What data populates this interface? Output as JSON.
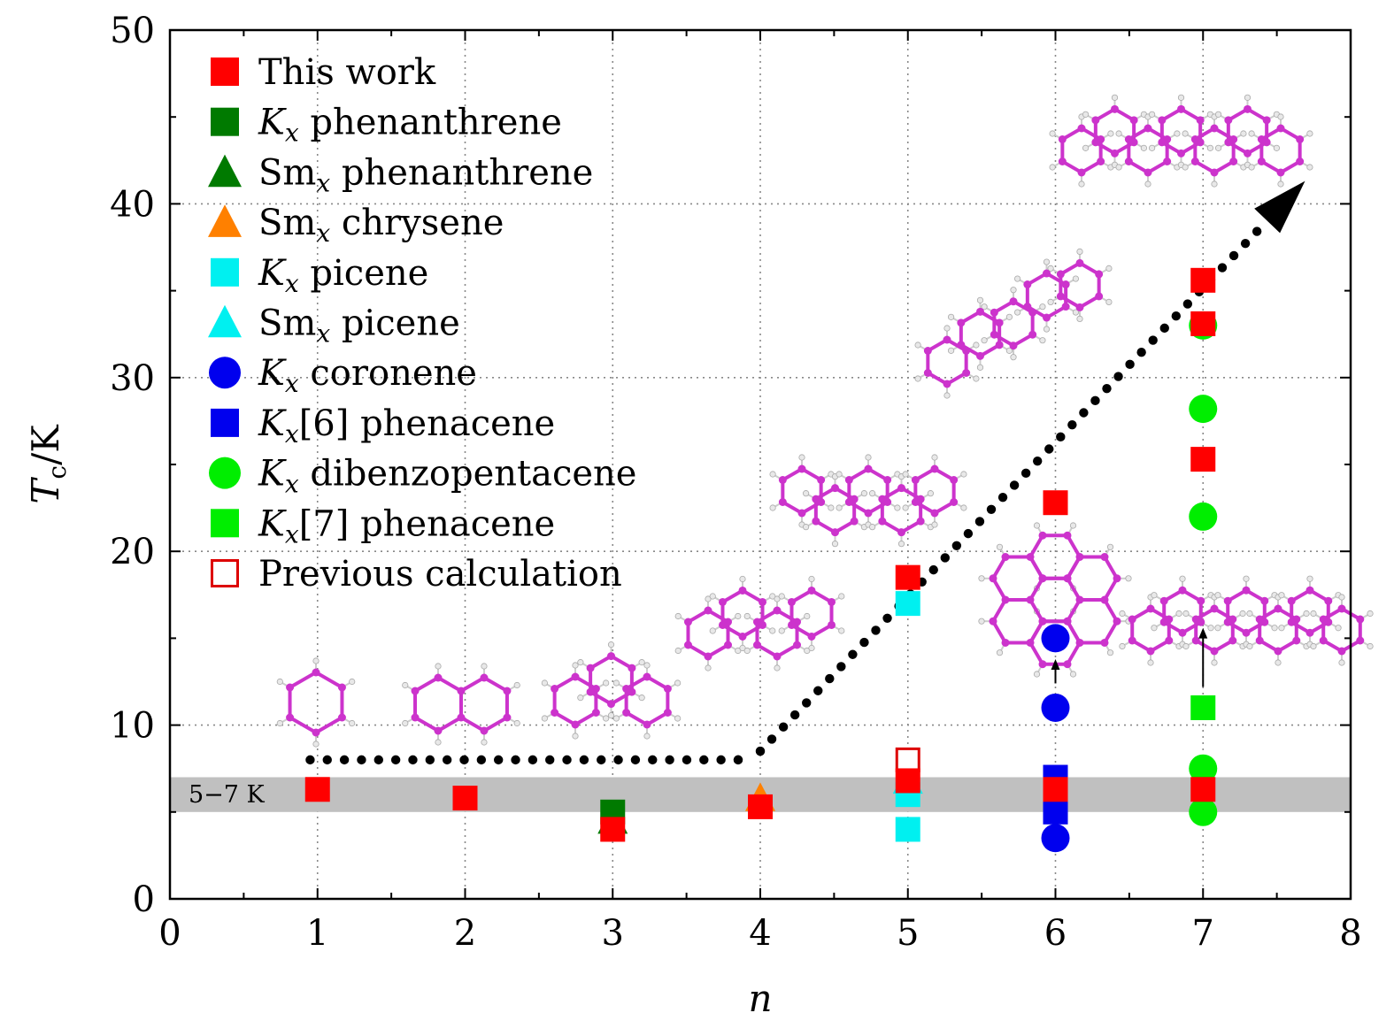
{
  "chart_data": {
    "type": "scatter",
    "xlabel": "n",
    "ylabel": "Tc/K",
    "ylabel_parts": {
      "main": "T",
      "sub": "c",
      "rest": "/K"
    },
    "xlim": [
      0,
      8
    ],
    "ylim": [
      0,
      50
    ],
    "x_ticks": [
      "0",
      "1",
      "2",
      "3",
      "4",
      "5",
      "6",
      "7",
      "8"
    ],
    "y_ticks": [
      "0",
      "10",
      "20",
      "30",
      "40",
      "50"
    ],
    "grid": true,
    "legend_placement": "top-left",
    "band": {
      "from": 5,
      "to": 7,
      "label": "5−7 K",
      "color": "#c0c0c0"
    },
    "series": [
      {
        "name": "This work",
        "name_parts": [
          "This work"
        ],
        "marker": "square",
        "color": "#ff0000",
        "points": [
          [
            1,
            6.3
          ],
          [
            2,
            5.8
          ],
          [
            3,
            4
          ],
          [
            4,
            5.3
          ],
          [
            5,
            18.5
          ],
          [
            5,
            6.8
          ],
          [
            6,
            22.8
          ],
          [
            6,
            6.3
          ],
          [
            7,
            35.6
          ],
          [
            7,
            33.1
          ],
          [
            7,
            25.3
          ],
          [
            7,
            6.3
          ]
        ]
      },
      {
        "name": "Kx phenanthrene",
        "name_parts": [
          "K",
          "x",
          " phenanthrene"
        ],
        "marker": "square",
        "color": "#007a00",
        "points": [
          [
            3,
            5
          ]
        ]
      },
      {
        "name": "Smx phenanthrene",
        "name_parts": [
          "Sm",
          "x",
          " phenanthrene"
        ],
        "marker": "triangle",
        "color": "#007a00",
        "points": [
          [
            3,
            4.5
          ]
        ]
      },
      {
        "name": "Smx chrysene",
        "name_parts": [
          "Sm",
          "x",
          " chrysene"
        ],
        "marker": "triangle",
        "color": "#ff8000",
        "points": [
          [
            4,
            5.8
          ]
        ]
      },
      {
        "name": "Kx picene",
        "name_parts": [
          "K",
          "x",
          " picene"
        ],
        "marker": "square",
        "color": "#00f0f0",
        "points": [
          [
            5,
            17
          ],
          [
            5,
            6
          ],
          [
            5,
            4
          ]
        ]
      },
      {
        "name": "Smx picene",
        "name_parts": [
          "Sm",
          "x",
          " picene"
        ],
        "marker": "triangle",
        "color": "#00f0f0",
        "points": [
          [
            5,
            6.8
          ]
        ]
      },
      {
        "name": "Kx coronene",
        "name_parts": [
          "K",
          "x",
          " coronene"
        ],
        "marker": "circle",
        "color": "#0000ee",
        "points": [
          [
            6,
            15
          ],
          [
            6,
            11
          ],
          [
            6,
            3.5
          ]
        ]
      },
      {
        "name": "Kx[6] phenacene",
        "name_parts": [
          "K",
          "x",
          "[6] phenacene"
        ],
        "marker": "square",
        "color": "#0000ee",
        "points": [
          [
            6,
            7
          ],
          [
            6,
            5
          ]
        ]
      },
      {
        "name": "Kx dibenzopentacene",
        "name_parts": [
          "K",
          "x",
          " dibenzopentacene"
        ],
        "marker": "circle",
        "color": "#00ee00",
        "points": [
          [
            7,
            33
          ],
          [
            7,
            28.2
          ],
          [
            7,
            22
          ],
          [
            7,
            7.5
          ],
          [
            7,
            5
          ]
        ]
      },
      {
        "name": "Kx[7] phenacene",
        "name_parts": [
          "K",
          "x",
          "[7] phenacene"
        ],
        "marker": "square",
        "color": "#00ee00",
        "points": [
          [
            7,
            11
          ]
        ]
      },
      {
        "name": "Previous calculation",
        "name_parts": [
          "Previous calculation"
        ],
        "marker": "square-open",
        "color": "#dd0000",
        "points": [
          [
            5,
            8
          ]
        ]
      }
    ],
    "trend_line": {
      "style": "dotted",
      "color": "#000000",
      "points": [
        [
          0.95,
          8
        ],
        [
          3.85,
          8
        ],
        [
          4,
          8.5
        ],
        [
          7.6,
          40.5
        ]
      ],
      "arrow": true
    },
    "arrows": [
      {
        "from": [
          6,
          12.4
        ],
        "to": [
          6,
          13.8
        ]
      },
      {
        "from": [
          7,
          12.2
        ],
        "to": [
          7,
          15.6
        ]
      }
    ],
    "molecule_icons": [
      "benzene",
      "naphthalene",
      "phenanthrene",
      "chrysene",
      "picene",
      "coronene",
      "phenacene-6",
      "phenacene-7",
      "dibenzopentacene"
    ]
  }
}
